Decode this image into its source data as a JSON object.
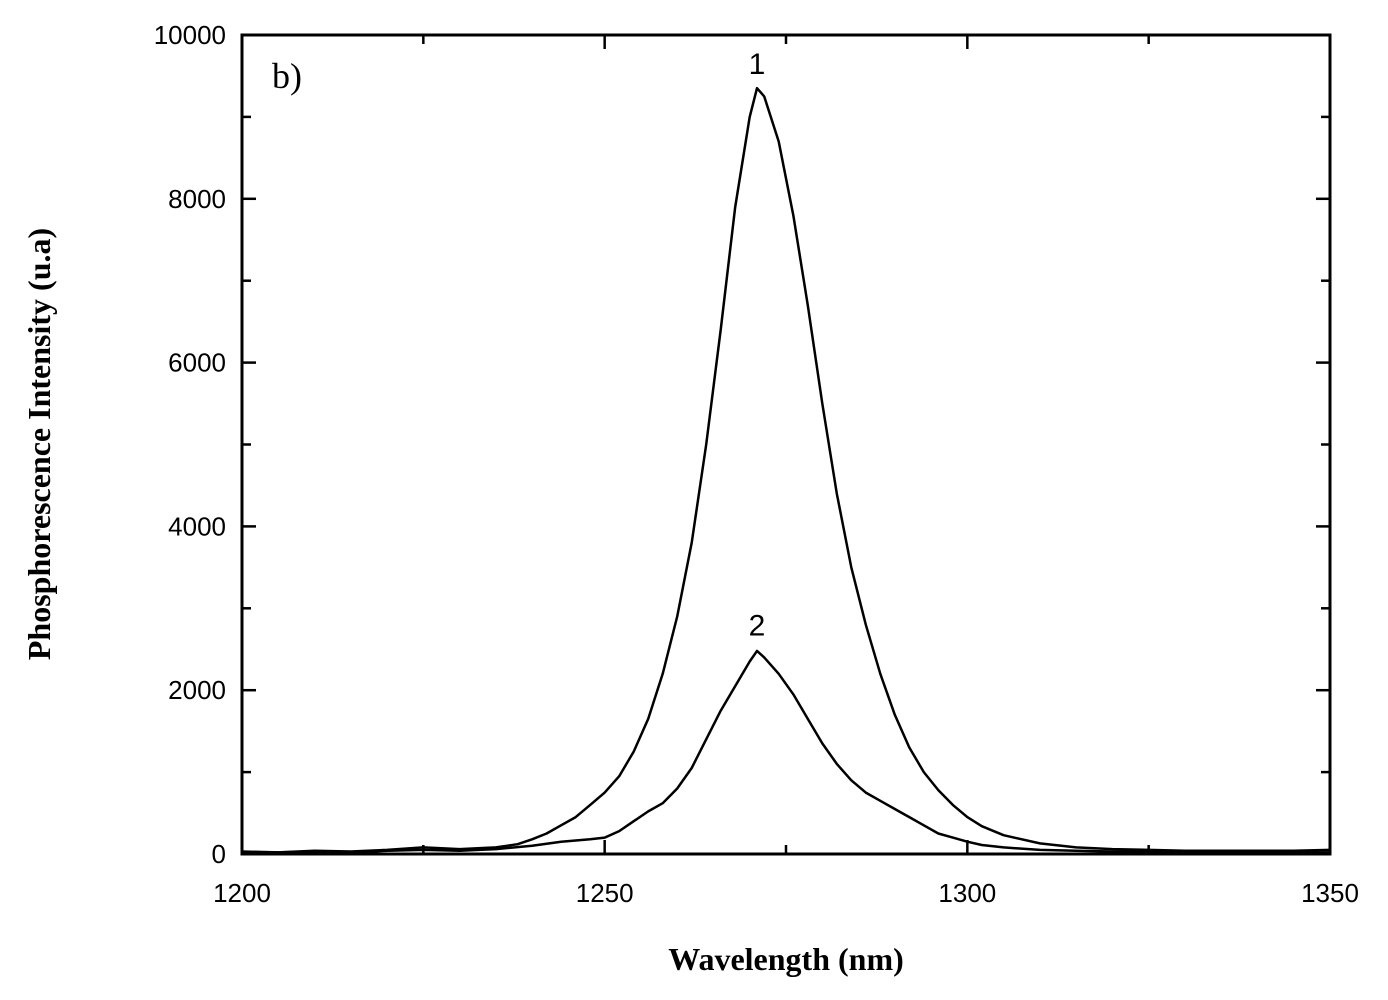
{
  "chart_data": {
    "type": "line",
    "panel_label": "b)",
    "xlabel": "Wavelength (nm)",
    "ylabel": "Phosphorescence Intensity (u.a)",
    "xlim": [
      1200,
      1350
    ],
    "ylim": [
      0,
      10000
    ],
    "x_ticks": [
      1200,
      1250,
      1300,
      1350
    ],
    "y_ticks": [
      0,
      2000,
      4000,
      6000,
      8000,
      10000
    ],
    "grid": false,
    "legend": "none",
    "series": [
      {
        "name": "1",
        "label_at": [
          1271,
          9350
        ],
        "x": [
          1200,
          1205,
          1210,
          1215,
          1220,
          1225,
          1230,
          1235,
          1238,
          1240,
          1242,
          1244,
          1246,
          1248,
          1250,
          1252,
          1254,
          1256,
          1258,
          1260,
          1262,
          1264,
          1266,
          1268,
          1270,
          1271,
          1272,
          1274,
          1276,
          1278,
          1280,
          1282,
          1284,
          1286,
          1288,
          1290,
          1292,
          1294,
          1296,
          1298,
          1300,
          1302,
          1305,
          1310,
          1315,
          1320,
          1325,
          1330,
          1335,
          1340,
          1345,
          1350
        ],
        "y": [
          30,
          20,
          40,
          30,
          50,
          80,
          60,
          80,
          120,
          180,
          250,
          350,
          450,
          600,
          750,
          950,
          1250,
          1650,
          2200,
          2900,
          3800,
          5000,
          6400,
          7900,
          9000,
          9350,
          9250,
          8700,
          7800,
          6700,
          5500,
          4400,
          3500,
          2800,
          2200,
          1700,
          1300,
          1000,
          780,
          600,
          450,
          340,
          230,
          130,
          80,
          60,
          50,
          40,
          40,
          40,
          40,
          50
        ]
      },
      {
        "name": "2",
        "label_at": [
          1271,
          2500
        ],
        "x": [
          1200,
          1205,
          1210,
          1215,
          1220,
          1225,
          1230,
          1235,
          1240,
          1244,
          1248,
          1250,
          1252,
          1254,
          1256,
          1258,
          1260,
          1262,
          1264,
          1266,
          1268,
          1270,
          1271,
          1272,
          1274,
          1276,
          1278,
          1280,
          1282,
          1284,
          1286,
          1288,
          1290,
          1292,
          1294,
          1296,
          1298,
          1300,
          1302,
          1305,
          1310,
          1315,
          1320,
          1325,
          1330,
          1335,
          1340,
          1345,
          1350
        ],
        "y": [
          20,
          20,
          30,
          20,
          40,
          50,
          40,
          60,
          100,
          150,
          180,
          200,
          280,
          400,
          520,
          620,
          800,
          1050,
          1400,
          1750,
          2050,
          2350,
          2480,
          2400,
          2200,
          1950,
          1650,
          1350,
          1100,
          900,
          750,
          650,
          550,
          450,
          350,
          250,
          200,
          150,
          110,
          80,
          50,
          40,
          30,
          30,
          20,
          20,
          30,
          20,
          20
        ]
      }
    ]
  }
}
